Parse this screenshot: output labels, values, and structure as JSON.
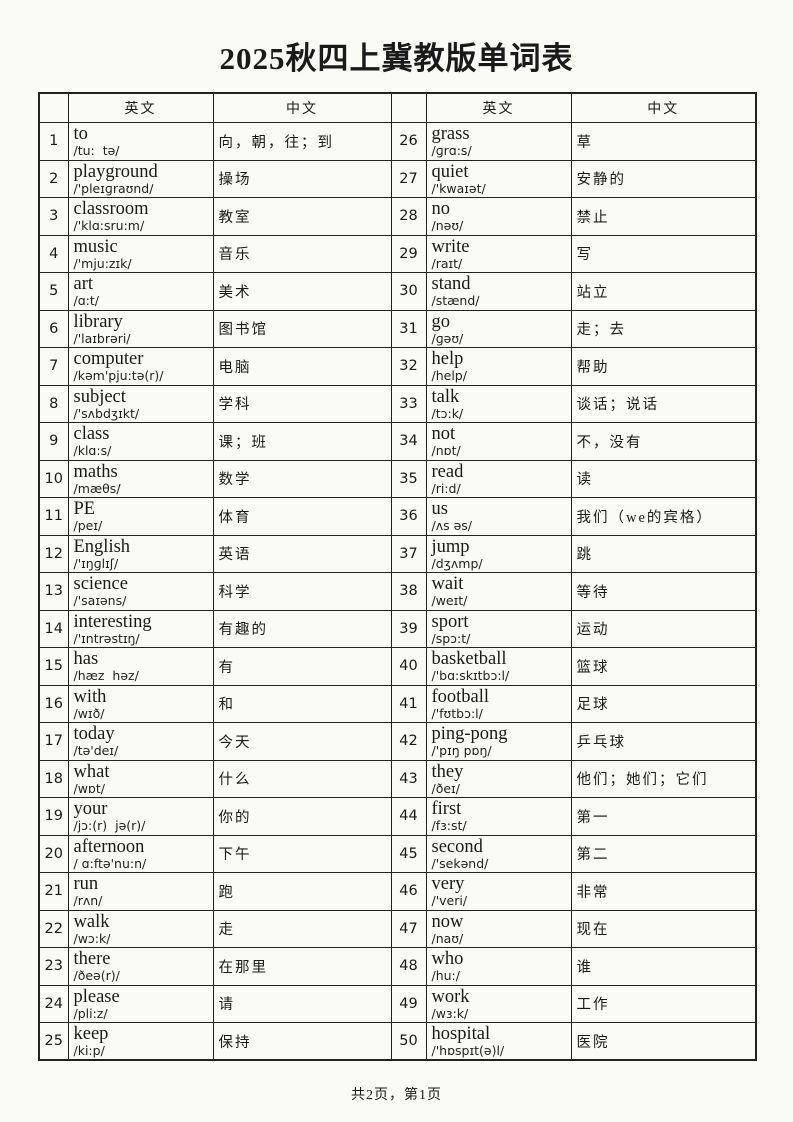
{
  "page": {
    "title": "2025秋四上冀教版单词表",
    "footer": "共2页，第1页"
  },
  "table": {
    "headers": {
      "en": "英文",
      "zh": "中文"
    },
    "entries": [
      {
        "num": 1,
        "word": "to",
        "phonetic": "/tu:  tə/",
        "meaning": "向，朝，往；到"
      },
      {
        "num": 2,
        "word": "playground",
        "phonetic": "/'pleɪɡraʊnd/",
        "meaning": "操场"
      },
      {
        "num": 3,
        "word": "classroom",
        "phonetic": "/'klɑ:sru:m/",
        "meaning": "教室"
      },
      {
        "num": 4,
        "word": "music",
        "phonetic": "/'mju:zɪk/",
        "meaning": "音乐"
      },
      {
        "num": 5,
        "word": "art",
        "phonetic": "/ɑ:t/",
        "meaning": "美术"
      },
      {
        "num": 6,
        "word": "library",
        "phonetic": "/'laɪbrəri/",
        "meaning": "图书馆"
      },
      {
        "num": 7,
        "word": "computer",
        "phonetic": "/kəm'pju:tə(r)/",
        "meaning": "电脑"
      },
      {
        "num": 8,
        "word": "subject",
        "phonetic": "/'sʌbdʒɪkt/",
        "meaning": "学科"
      },
      {
        "num": 9,
        "word": "class",
        "phonetic": "/klɑ:s/",
        "meaning": "课；班"
      },
      {
        "num": 10,
        "word": "maths",
        "phonetic": "/mæθs/",
        "meaning": "数学"
      },
      {
        "num": 11,
        "word": "PE",
        "phonetic": "/peɪ/",
        "meaning": "体育"
      },
      {
        "num": 12,
        "word": "English",
        "phonetic": "/'ɪŋɡlɪʃ/",
        "meaning": "英语"
      },
      {
        "num": 13,
        "word": "science",
        "phonetic": "/'saɪəns/",
        "meaning": "科学"
      },
      {
        "num": 14,
        "word": "interesting",
        "phonetic": "/'ɪntrəstɪŋ/",
        "meaning": "有趣的"
      },
      {
        "num": 15,
        "word": "has",
        "phonetic": "/hæz  həz/",
        "meaning": "有"
      },
      {
        "num": 16,
        "word": "with",
        "phonetic": "/wɪð/",
        "meaning": "和"
      },
      {
        "num": 17,
        "word": "today",
        "phonetic": "/tə'deɪ/",
        "meaning": "今天"
      },
      {
        "num": 18,
        "word": "what",
        "phonetic": "/wɒt/",
        "meaning": "什么"
      },
      {
        "num": 19,
        "word": "your",
        "phonetic": "/jɔ:(r)  jə(r)/",
        "meaning": "你的"
      },
      {
        "num": 20,
        "word": "afternoon",
        "phonetic": "/ ɑ:ftə'nu:n/",
        "meaning": "下午"
      },
      {
        "num": 21,
        "word": "run",
        "phonetic": "/rʌn/",
        "meaning": "跑"
      },
      {
        "num": 22,
        "word": "walk",
        "phonetic": "/wɔ:k/",
        "meaning": "走"
      },
      {
        "num": 23,
        "word": "there",
        "phonetic": "/ðeə(r)/",
        "meaning": "在那里"
      },
      {
        "num": 24,
        "word": "please",
        "phonetic": "/pli:z/",
        "meaning": "请"
      },
      {
        "num": 25,
        "word": "keep",
        "phonetic": "/ki:p/",
        "meaning": "保持"
      },
      {
        "num": 26,
        "word": "grass",
        "phonetic": "/ɡrɑ:s/",
        "meaning": "草"
      },
      {
        "num": 27,
        "word": "quiet",
        "phonetic": "/'kwaɪət/",
        "meaning": "安静的"
      },
      {
        "num": 28,
        "word": "no",
        "phonetic": "/nəʊ/",
        "meaning": "禁止"
      },
      {
        "num": 29,
        "word": "write",
        "phonetic": "/raɪt/",
        "meaning": "写"
      },
      {
        "num": 30,
        "word": "stand",
        "phonetic": "/stænd/",
        "meaning": "站立"
      },
      {
        "num": 31,
        "word": "go",
        "phonetic": "/ɡəʊ/",
        "meaning": "走；去"
      },
      {
        "num": 32,
        "word": "help",
        "phonetic": "/help/",
        "meaning": "帮助"
      },
      {
        "num": 33,
        "word": "talk",
        "phonetic": "/tɔ:k/",
        "meaning": "谈话；说话"
      },
      {
        "num": 34,
        "word": "not",
        "phonetic": "/nɒt/",
        "meaning": "不，没有"
      },
      {
        "num": 35,
        "word": "read",
        "phonetic": "/ri:d/",
        "meaning": "读"
      },
      {
        "num": 36,
        "word": "us",
        "phonetic": "/ʌs əs/",
        "meaning": "我们（we的宾格）"
      },
      {
        "num": 37,
        "word": "jump",
        "phonetic": "/dʒʌmp/",
        "meaning": "跳"
      },
      {
        "num": 38,
        "word": "wait",
        "phonetic": "/weɪt/",
        "meaning": "等待"
      },
      {
        "num": 39,
        "word": "sport",
        "phonetic": "/spɔ:t/",
        "meaning": "运动"
      },
      {
        "num": 40,
        "word": "basketball",
        "phonetic": "/'bɑ:skɪtbɔ:l/",
        "meaning": "篮球"
      },
      {
        "num": 41,
        "word": "football",
        "phonetic": "/'fʊtbɔ:l/",
        "meaning": "足球"
      },
      {
        "num": 42,
        "word": "ping-pong",
        "phonetic": "/'pɪŋ pɒŋ/",
        "meaning": "乒乓球"
      },
      {
        "num": 43,
        "word": "they",
        "phonetic": "/ðeɪ/",
        "meaning": "他们；她们；它们"
      },
      {
        "num": 44,
        "word": "first",
        "phonetic": "/fɜ:st/",
        "meaning": "第一"
      },
      {
        "num": 45,
        "word": "second",
        "phonetic": "/'sekənd/",
        "meaning": "第二"
      },
      {
        "num": 46,
        "word": "very",
        "phonetic": "/'veri/",
        "meaning": "非常"
      },
      {
        "num": 47,
        "word": "now",
        "phonetic": "/naʊ/",
        "meaning": "现在"
      },
      {
        "num": 48,
        "word": "who",
        "phonetic": "/hu:/",
        "meaning": "谁"
      },
      {
        "num": 49,
        "word": "work",
        "phonetic": "/wɜ:k/",
        "meaning": "工作"
      },
      {
        "num": 50,
        "word": "hospital",
        "phonetic": "/'hɒspɪt(ə)l/",
        "meaning": "医院"
      }
    ]
  }
}
